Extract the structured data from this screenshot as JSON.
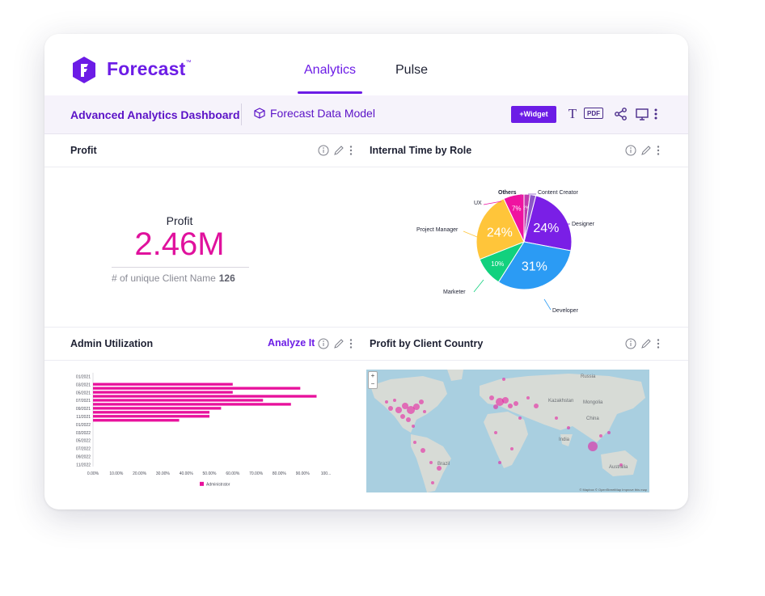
{
  "header": {
    "brand": "Forecast",
    "brand_tm": "™",
    "tabs": [
      {
        "label": "Analytics",
        "active": true
      },
      {
        "label": "Pulse",
        "active": false
      }
    ]
  },
  "toolbar": {
    "dashboard_title": "Advanced Analytics Dashboard",
    "data_model": "Forecast Data Model",
    "widget_button": "+Widget",
    "icons": [
      "text-icon",
      "pdf-icon",
      "share-icon",
      "monitor-icon",
      "more-icon"
    ],
    "pdf_label": "PDF",
    "text_label": "T"
  },
  "panels": {
    "profit": {
      "title": "Profit",
      "kpi_label": "Profit",
      "kpi_value": "2.46M",
      "sub_label": "# of unique Client Name",
      "sub_value": "126"
    },
    "internal_time": {
      "title": "Internal Time by Role"
    },
    "admin_util": {
      "title": "Admin Utilization",
      "analyze": "Analyze It"
    },
    "profit_country": {
      "title": "Profit by Client Country",
      "attribution": "© Mapbox © OpenStreetMap Improve this map"
    }
  },
  "colors": {
    "accent": "#6c1ce6",
    "kpi": "#e0119d",
    "bar": "#e8119c"
  },
  "map_labels": [
    "Russia",
    "Kazakhstan",
    "Mongolia",
    "China",
    "India",
    "Brazil",
    "Australia"
  ],
  "chart_data": [
    {
      "type": "pie",
      "slices": [
        {
          "label": "Designer",
          "value": 24,
          "display": "24%",
          "color": "#7a1fe6"
        },
        {
          "label": "Developer",
          "value": 31,
          "display": "31%",
          "color": "#2b9bf4"
        },
        {
          "label": "Marketer",
          "value": 10,
          "display": "10%",
          "color": "#12d17e"
        },
        {
          "label": "Project Manager",
          "value": 24,
          "display": "24%",
          "color": "#ffc53a"
        },
        {
          "label": "UX",
          "value": 7,
          "display": "7%",
          "color": "#ef13a0"
        },
        {
          "label": "Others",
          "value": 2,
          "display": "2%",
          "color": "#c23bb0"
        },
        {
          "label": "Content Creator",
          "value": 2,
          "display": "",
          "color": "#8c57c8"
        }
      ]
    },
    {
      "type": "bar",
      "orientation": "horizontal",
      "categories": [
        "01/2021",
        "02/2021",
        "03/2021",
        "04/2021",
        "05/2021",
        "06/2021",
        "07/2021",
        "08/2021",
        "09/2021",
        "10/2021",
        "11/2021",
        "12/2021",
        "01/2022",
        "02/2022",
        "03/2022",
        "04/2022",
        "05/2022",
        "06/2022",
        "07/2022",
        "08/2022",
        "09/2022",
        "10/2022",
        "11/2022"
      ],
      "category_labels": [
        "01/2021",
        "03/2021",
        "05/2021",
        "07/2021",
        "09/2021",
        "11/2021",
        "01/2022",
        "03/2022",
        "05/2022",
        "07/2022",
        "09/2022",
        "11/2022"
      ],
      "series": [
        {
          "name": "Administrator",
          "values": [
            0,
            0,
            60,
            89,
            60,
            96,
            73,
            85,
            55,
            50,
            50,
            37,
            0,
            0,
            0,
            0,
            0,
            0,
            0,
            0,
            0,
            0,
            0
          ]
        }
      ],
      "x_ticks": [
        "0.00%",
        "10.00%",
        "20.00%",
        "30.00%",
        "40.00%",
        "50.00%",
        "60.00%",
        "70.00%",
        "80.00%",
        "90.00%",
        "100..."
      ],
      "xlim": [
        0,
        100
      ]
    }
  ]
}
